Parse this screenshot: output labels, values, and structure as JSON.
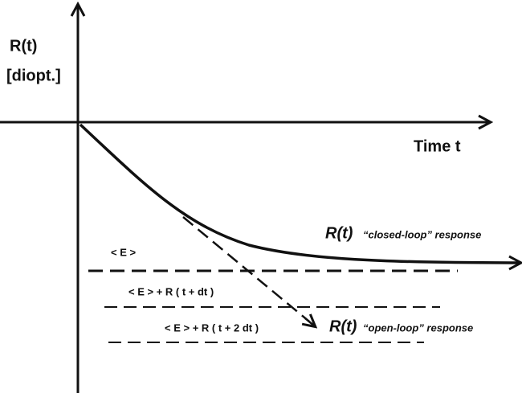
{
  "axes": {
    "y_label": "R(t)",
    "y_unit": "[diopt.]",
    "x_label": "Time  t"
  },
  "curves": {
    "closed_loop": {
      "symbol": "R(t)",
      "label": "“closed-loop” response"
    },
    "open_loop": {
      "symbol": "R(t)",
      "label": "“open-loop” response"
    }
  },
  "levels": [
    "< E >",
    "< E > + R ( t + dt )",
    "< E > + R ( t + 2 dt )"
  ]
}
